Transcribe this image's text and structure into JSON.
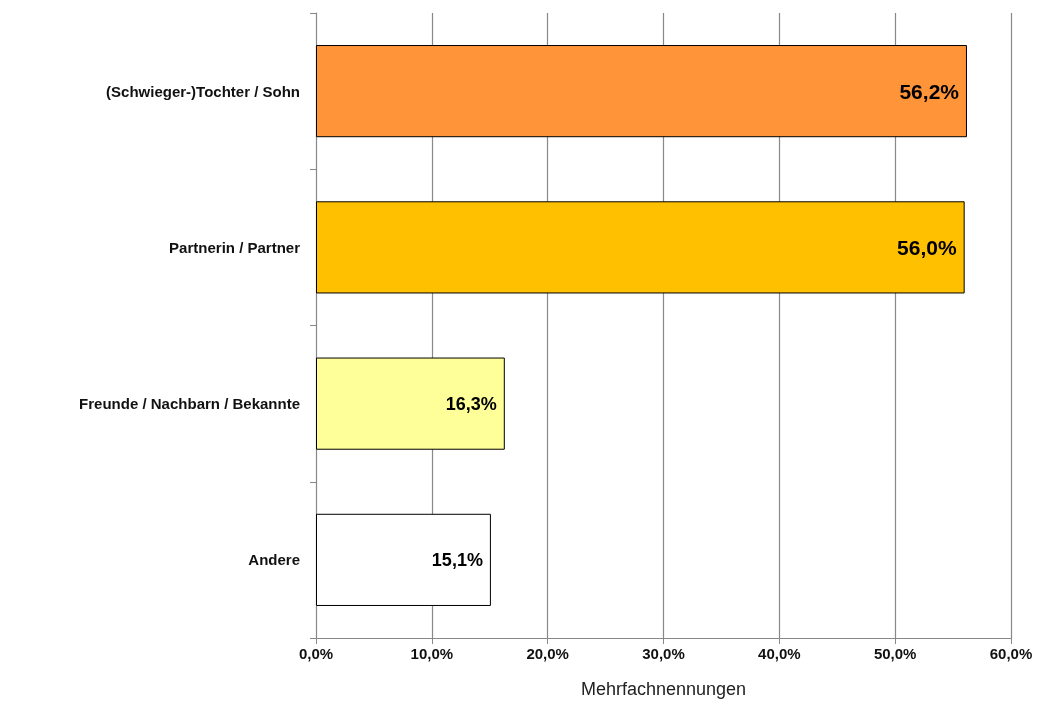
{
  "chart_data": {
    "type": "bar",
    "orientation": "horizontal",
    "xlabel": "Mehrfachnennungen",
    "categories": [
      "(Schwieger-)Tochter / Sohn",
      "Partnerin / Partner",
      "Freunde / Nachbarn / Bekannte",
      "Andere"
    ],
    "values": [
      56.2,
      56.0,
      16.3,
      15.1
    ],
    "colors": [
      "#ff9438",
      "#ffc000",
      "#ffff99",
      "#ffffff"
    ],
    "value_labels": [
      "56,2%",
      "56,0%",
      "16,3%",
      "15,1%"
    ],
    "xlim": [
      0,
      60
    ],
    "xticks": [
      {
        "value": 0,
        "label": "0,0%"
      },
      {
        "value": 10,
        "label": "10,0%"
      },
      {
        "value": 20,
        "label": "20,0%"
      },
      {
        "value": 30,
        "label": "30,0%"
      },
      {
        "value": 40,
        "label": "40,0%"
      },
      {
        "value": 50,
        "label": "50,0%"
      },
      {
        "value": 60,
        "label": "60,0%"
      }
    ],
    "grid": "x"
  }
}
